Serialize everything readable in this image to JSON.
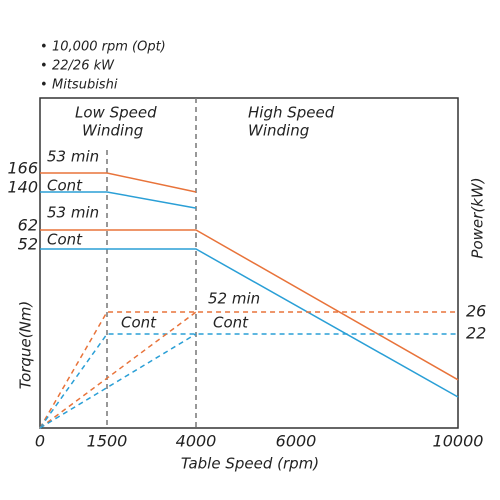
{
  "chart_data": {
    "type": "line",
    "notes": [
      "10,000 rpm (Opt)",
      "22/26 kW",
      "Mitsubishi"
    ],
    "x_label": "Table Speed (rpm)",
    "y_label": "Torque(Nm)",
    "y2_label": "Power(kW)",
    "annotations": [
      "Low Speed",
      "Winding",
      "High Speed",
      "Winding",
      "53 min",
      "Cont",
      "53 min",
      "Cont",
      "52 min",
      "Cont",
      "Cont"
    ],
    "xlim": [
      0,
      10000
    ],
    "xticks": [
      0,
      1500,
      4000,
      6000,
      10000
    ],
    "ylim": [
      0,
      270
    ],
    "yticks": [
      52,
      62,
      140,
      166
    ],
    "y2lim": [
      0,
      65
    ],
    "y2ticks": [
      22,
      26
    ],
    "dividers": [
      1500,
      4000
    ],
    "series": [
      {
        "color": "#e8733a",
        "dashed": false,
        "x": [
          0,
          1500,
          4000
        ],
        "values": [
          166,
          166,
          140
        ]
      },
      {
        "color": "#2a9fd6",
        "dashed": false,
        "x": [
          0,
          1500,
          4000
        ],
        "values": [
          140,
          140,
          107
        ]
      },
      {
        "color": "#e8733a",
        "dashed": false,
        "x": [
          0,
          4000,
          10000
        ],
        "values": [
          62,
          62,
          14
        ]
      },
      {
        "color": "#2a9fd6",
        "dashed": false,
        "x": [
          0,
          4000,
          10000
        ],
        "values": [
          52,
          52,
          9
        ]
      },
      {
        "color": "#e8733a",
        "dashed": true,
        "axis": "y2",
        "x": [
          0,
          1500,
          10000
        ],
        "values": [
          0,
          26,
          26
        ]
      },
      {
        "color": "#2a9fd6",
        "dashed": true,
        "axis": "y2",
        "x": [
          0,
          1500,
          10000
        ],
        "values": [
          0,
          22,
          22
        ]
      },
      {
        "color": "#e8733a",
        "dashed": true,
        "axis": "y2",
        "x": [
          0,
          4000
        ],
        "values": [
          0,
          26
        ]
      },
      {
        "color": "#2a9fd6",
        "dashed": true,
        "axis": "y2",
        "x": [
          0,
          4000
        ],
        "values": [
          0,
          22
        ]
      }
    ]
  }
}
